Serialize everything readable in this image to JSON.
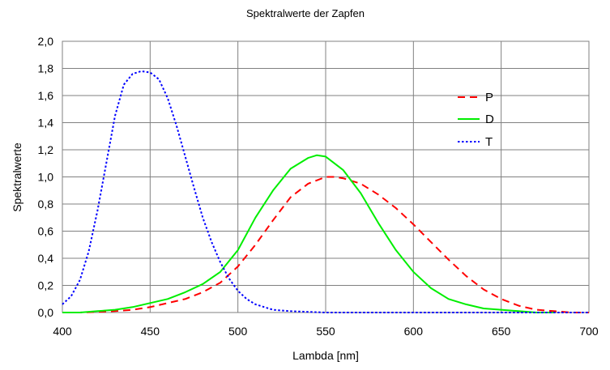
{
  "chart_data": {
    "type": "line",
    "title": "Spektralwerte der Zapfen",
    "xlabel": "Lambda [nm]",
    "ylabel": "Spektralwerte",
    "xlim": [
      400,
      700
    ],
    "ylim": [
      0,
      2.0
    ],
    "x_ticks": [
      "400",
      "450",
      "500",
      "550",
      "600",
      "650",
      "700"
    ],
    "y_ticks": [
      "0,0",
      "0,2",
      "0,4",
      "0,6",
      "0,8",
      "1,0",
      "1,2",
      "1,4",
      "1,6",
      "1,8",
      "2,0"
    ],
    "grid": true,
    "legend_position": "right",
    "series": [
      {
        "name": "P",
        "color": "#ff0000",
        "style": "dashed",
        "x": [
          400,
          410,
          420,
          430,
          440,
          450,
          460,
          470,
          480,
          490,
          500,
          510,
          520,
          530,
          540,
          550,
          555,
          560,
          570,
          580,
          590,
          600,
          610,
          620,
          630,
          640,
          650,
          660,
          670,
          680,
          690,
          700
        ],
        "y": [
          0.0,
          0.0,
          0.005,
          0.01,
          0.02,
          0.04,
          0.07,
          0.1,
          0.15,
          0.22,
          0.34,
          0.5,
          0.68,
          0.85,
          0.95,
          1.0,
          1.0,
          0.99,
          0.95,
          0.87,
          0.77,
          0.65,
          0.52,
          0.39,
          0.27,
          0.17,
          0.1,
          0.05,
          0.02,
          0.01,
          0.0,
          0.0
        ]
      },
      {
        "name": "D",
        "color": "#00ee00",
        "style": "solid",
        "x": [
          400,
          410,
          420,
          430,
          440,
          450,
          460,
          470,
          480,
          490,
          500,
          510,
          520,
          530,
          540,
          545,
          550,
          560,
          570,
          580,
          590,
          600,
          610,
          620,
          630,
          640,
          650,
          660,
          670,
          680
        ],
        "y": [
          0.0,
          0.0,
          0.01,
          0.02,
          0.04,
          0.07,
          0.1,
          0.15,
          0.21,
          0.3,
          0.46,
          0.7,
          0.9,
          1.06,
          1.14,
          1.16,
          1.15,
          1.05,
          0.88,
          0.66,
          0.46,
          0.3,
          0.18,
          0.1,
          0.06,
          0.03,
          0.02,
          0.01,
          0.0,
          0.0
        ]
      },
      {
        "name": "T",
        "color": "#0000ff",
        "style": "dotted",
        "x": [
          400,
          405,
          410,
          415,
          420,
          425,
          430,
          435,
          440,
          445,
          450,
          455,
          460,
          465,
          470,
          475,
          480,
          485,
          490,
          495,
          500,
          505,
          510,
          515,
          520,
          525,
          530,
          540,
          550,
          600,
          650,
          700
        ],
        "y": [
          0.06,
          0.12,
          0.24,
          0.45,
          0.75,
          1.1,
          1.45,
          1.68,
          1.76,
          1.78,
          1.77,
          1.72,
          1.58,
          1.38,
          1.15,
          0.92,
          0.7,
          0.52,
          0.37,
          0.25,
          0.16,
          0.1,
          0.06,
          0.04,
          0.02,
          0.015,
          0.01,
          0.005,
          0.0,
          0.0,
          0.0,
          0.0
        ]
      }
    ]
  }
}
